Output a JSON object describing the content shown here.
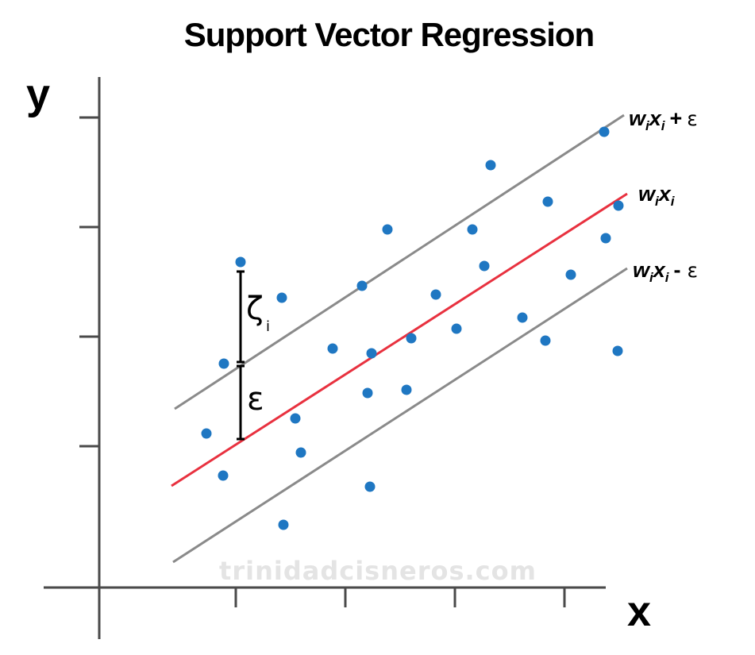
{
  "title": "Support Vector Regression",
  "axes": {
    "x_label": "x",
    "y_label": "y"
  },
  "labels": {
    "upper": {
      "w": "w",
      "i1": "i",
      "x": "x",
      "i2": "i",
      "op": "+",
      "eps": "ε"
    },
    "center": {
      "w": "w",
      "i1": "i",
      "x": "x",
      "i2": "i"
    },
    "lower": {
      "w": "w",
      "i1": "i",
      "x": "x",
      "i2": "i",
      "op": "-",
      "eps": "ε"
    }
  },
  "annotations": {
    "zeta": "ζ",
    "zeta_sub": "i",
    "epsilon": "ε"
  },
  "watermark": "trinidadcisneros.com",
  "colors": {
    "points": "#1f77c2",
    "regression_line": "#e8313f",
    "margin_lines": "#8a8a8a",
    "axes": "#4a4a4a",
    "watermark": "#e4e4e4"
  }
}
